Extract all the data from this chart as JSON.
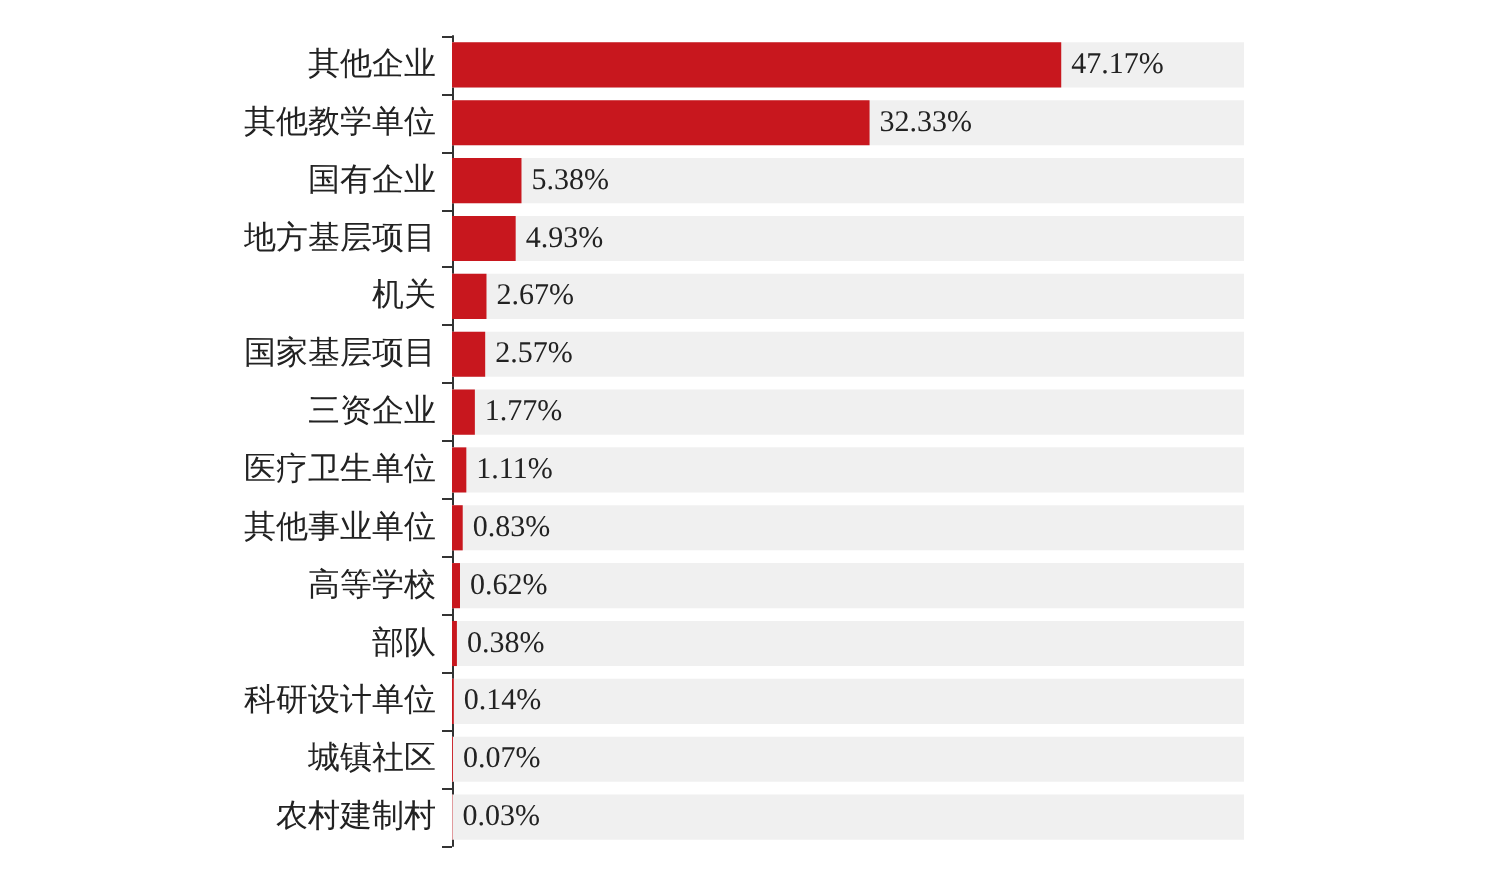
{
  "chart_data": {
    "type": "bar",
    "orientation": "horizontal",
    "categories": [
      "其他企业",
      "其他教学单位",
      "国有企业",
      "地方基层项目",
      "机关",
      "国家基层项目",
      "三资企业",
      "医疗卫生单位",
      "其他事业单位",
      "高等学校",
      "部队",
      "科研设计单位",
      "城镇社区",
      "农村建制村"
    ],
    "values": [
      47.17,
      32.33,
      5.38,
      4.93,
      2.67,
      2.57,
      1.77,
      1.11,
      0.83,
      0.62,
      0.38,
      0.14,
      0.07,
      0.03
    ],
    "value_labels": [
      "47.17%",
      "32.33%",
      "5.38%",
      "4.93%",
      "2.67%",
      "2.57%",
      "1.77%",
      "1.11%",
      "0.83%",
      "0.62%",
      "0.38%",
      "0.14%",
      "0.07%",
      "0.03%"
    ],
    "color": "#c8171e"
  }
}
